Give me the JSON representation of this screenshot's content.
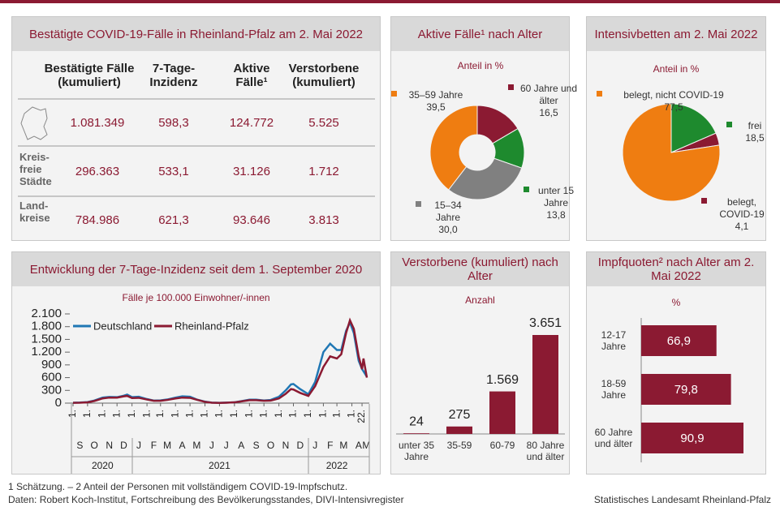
{
  "table": {
    "title": "Bestätigte COVID-19-Fälle in Rheinland-Pfalz am 2. Mai 2022",
    "columns": [
      "Bestätigte Fälle (kumuliert)",
      "7-Tage-Inzidenz",
      "Aktive Fälle¹",
      "Verstorbene (kumuliert)"
    ],
    "rows": [
      {
        "label": null,
        "values": [
          "1.081.349",
          "598,3",
          "124.772",
          "5.525"
        ]
      },
      {
        "label": "Kreis-freie Städte",
        "values": [
          "296.363",
          "533,1",
          "31.126",
          "1.712"
        ]
      },
      {
        "label": "Land-kreise",
        "values": [
          "784.986",
          "621,3",
          "93.646",
          "3.813"
        ]
      }
    ]
  },
  "chart_data": [
    {
      "type": "donut",
      "title": "Aktive Fälle¹ nach Alter",
      "subtitle": "Anteil in %",
      "categories": [
        "60 Jahre und älter",
        "unter 15 Jahre",
        "15–34 Jahre",
        "35–59 Jahre"
      ],
      "values": [
        16.5,
        13.8,
        30.0,
        39.5
      ],
      "value_labels": [
        "16,5",
        "13,8",
        "30,0",
        "39,5"
      ],
      "colors": [
        "#8b1a32",
        "#1e8a2e",
        "#808080",
        "#ef7d11"
      ]
    },
    {
      "type": "pie",
      "title": "Intensivbetten am 2. Mai 2022",
      "subtitle": "Anteil in %",
      "categories": [
        "frei",
        "belegt, COVID-19",
        "belegt, nicht COVID-19"
      ],
      "values": [
        18.5,
        4.1,
        77.5
      ],
      "value_labels": [
        "18,5",
        "4,1",
        "77,5"
      ],
      "colors": [
        "#1e8a2e",
        "#8b1a32",
        "#ef7d11"
      ]
    },
    {
      "type": "line",
      "title": "Entwicklung der 7-Tage-Inzidenz seit dem 1. September 2020",
      "subtitle": "Fälle je 100.000 Einwohner/-innen",
      "x": [
        "2020-09-01",
        "2020-09-15",
        "2020-10-01",
        "2020-10-15",
        "2020-11-01",
        "2020-11-15",
        "2020-12-01",
        "2020-12-15",
        "2020-12-22",
        "2021-01-01",
        "2021-01-15",
        "2021-02-01",
        "2021-02-15",
        "2021-03-01",
        "2021-03-15",
        "2021-04-01",
        "2021-04-15",
        "2021-05-01",
        "2021-05-15",
        "2021-06-01",
        "2021-06-15",
        "2021-07-01",
        "2021-07-15",
        "2021-08-01",
        "2021-08-15",
        "2021-09-01",
        "2021-09-15",
        "2021-10-01",
        "2021-10-15",
        "2021-11-01",
        "2021-11-15",
        "2021-11-26",
        "2021-12-01",
        "2021-12-15",
        "2022-01-01",
        "2022-01-15",
        "2022-02-01",
        "2022-02-15",
        "2022-03-01",
        "2022-03-10",
        "2022-03-20",
        "2022-03-28",
        "2022-04-05",
        "2022-04-15",
        "2022-04-22",
        "2022-04-25",
        "2022-05-02"
      ],
      "series": [
        {
          "name": "Deutschland",
          "color": "#1f77b4",
          "values": [
            10,
            15,
            25,
            60,
            130,
            145,
            140,
            175,
            200,
            140,
            150,
            95,
            60,
            65,
            85,
            130,
            160,
            150,
            85,
            35,
            12,
            6,
            12,
            20,
            45,
            80,
            80,
            62,
            75,
            150,
            300,
            440,
            450,
            330,
            210,
            500,
            1200,
            1400,
            1250,
            1250,
            1700,
            1900,
            1650,
            1000,
            800,
            750,
            620
          ]
        },
        {
          "name": "Rheinland-Pfalz",
          "color": "#8b1a32",
          "values": [
            8,
            10,
            20,
            50,
            110,
            130,
            130,
            160,
            170,
            120,
            125,
            85,
            55,
            55,
            75,
            110,
            130,
            125,
            80,
            30,
            10,
            5,
            10,
            18,
            40,
            70,
            70,
            55,
            60,
            110,
            220,
            330,
            320,
            240,
            170,
            400,
            850,
            1100,
            1050,
            1150,
            1650,
            1950,
            1750,
            1100,
            800,
            1050,
            600
          ]
        }
      ],
      "xlim": [
        "2020-09-01",
        "2022-05-02"
      ],
      "xticks": [
        {
          "value": "2020-09-01",
          "label": "1."
        },
        {
          "value": "2020-10-01",
          "label": "1."
        },
        {
          "value": "2020-11-01",
          "label": "1."
        },
        {
          "value": "2020-12-01",
          "label": "1."
        },
        {
          "value": "2021-01-01",
          "label": "1."
        },
        {
          "value": "2021-02-01",
          "label": "1."
        },
        {
          "value": "2021-03-01",
          "label": "1."
        },
        {
          "value": "2021-04-01",
          "label": "1."
        },
        {
          "value": "2021-05-01",
          "label": "1."
        },
        {
          "value": "2021-06-01",
          "label": "1."
        },
        {
          "value": "2021-07-01",
          "label": "1."
        },
        {
          "value": "2021-08-01",
          "label": "1."
        },
        {
          "value": "2021-09-01",
          "label": "1."
        },
        {
          "value": "2021-10-01",
          "label": "1."
        },
        {
          "value": "2021-11-01",
          "label": "1."
        },
        {
          "value": "2021-12-01",
          "label": "1."
        },
        {
          "value": "2022-01-01",
          "label": "1."
        },
        {
          "value": "2022-02-01",
          "label": "1."
        },
        {
          "value": "2022-03-01",
          "label": "1."
        },
        {
          "value": "2022-04-01",
          "label": "1."
        },
        {
          "value": "2022-04-22",
          "label": "22."
        }
      ],
      "months": [
        {
          "value": "2020-09-15",
          "label": "S"
        },
        {
          "value": "2020-10-15",
          "label": "O"
        },
        {
          "value": "2020-11-15",
          "label": "N"
        },
        {
          "value": "2020-12-15",
          "label": "D"
        },
        {
          "value": "2021-01-15",
          "label": "J"
        },
        {
          "value": "2021-02-15",
          "label": "F"
        },
        {
          "value": "2021-03-15",
          "label": "M"
        },
        {
          "value": "2021-04-15",
          "label": "A"
        },
        {
          "value": "2021-05-15",
          "label": "M"
        },
        {
          "value": "2021-06-15",
          "label": "J"
        },
        {
          "value": "2021-07-15",
          "label": "J"
        },
        {
          "value": "2021-08-15",
          "label": "A"
        },
        {
          "value": "2021-09-15",
          "label": "S"
        },
        {
          "value": "2021-10-15",
          "label": "O"
        },
        {
          "value": "2021-11-15",
          "label": "N"
        },
        {
          "value": "2021-12-15",
          "label": "D"
        },
        {
          "value": "2022-01-15",
          "label": "J"
        },
        {
          "value": "2022-02-15",
          "label": "F"
        },
        {
          "value": "2022-03-15",
          "label": "M"
        },
        {
          "value": "2022-04-15",
          "label": "A"
        },
        {
          "value": "2022-05-01",
          "label": "M"
        }
      ],
      "years": [
        {
          "value": "2020-11-01",
          "label": "2020"
        },
        {
          "value": "2021-07-01",
          "label": "2021"
        },
        {
          "value": "2022-03-01",
          "label": "2022"
        }
      ],
      "ylim": [
        0,
        2100
      ],
      "yticks": [
        0,
        300,
        600,
        900,
        {
          "value": 1200,
          "label": "1.200"
        },
        {
          "value": 1500,
          "label": "1.500"
        },
        {
          "value": 1800,
          "label": "1.800"
        },
        {
          "value": 2100,
          "label": "2.100"
        }
      ]
    },
    {
      "type": "bar",
      "title": "Verstorbene (kumuliert) nach Alter",
      "subtitle": "Anzahl",
      "categories": [
        "unter 35 Jahre",
        "35-59",
        "60-79",
        "80 Jahre und älter"
      ],
      "values": [
        24,
        275,
        1569,
        3651
      ],
      "value_labels": [
        "24",
        "275",
        "1.569",
        "3.651"
      ],
      "color": "#8b1a32"
    },
    {
      "type": "hbar",
      "title": "Impfquoten² nach Alter am 2. Mai 2022",
      "subtitle": "%",
      "categories": [
        "12-17 Jahre",
        "18-59 Jahre",
        "60 Jahre und älter"
      ],
      "values": [
        66.9,
        79.8,
        90.9
      ],
      "value_labels": [
        "66,9",
        "79,8",
        "90,9"
      ],
      "color": "#8b1a32"
    }
  ],
  "footer": {
    "notes": "1 Schätzung. – 2 Anteil der Personen mit vollständigem COVID-19-Impfschutz.",
    "source": "Daten: Robert Koch-Institut, Fortschreibung des Bevölkerungsstandes, DIVI-Intensivregister",
    "publisher": "Statistisches Landesamt Rheinland-Pfalz"
  }
}
